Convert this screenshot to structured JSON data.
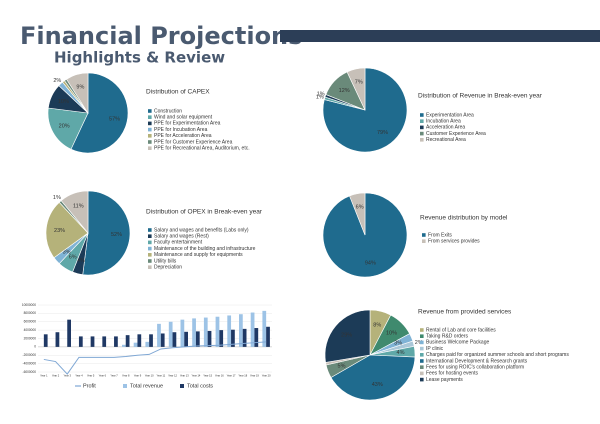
{
  "header": {
    "title": "Financial Projections",
    "subtitle": "Highlights & Review"
  },
  "chart_data": [
    {
      "type": "pie",
      "title": "Distribution of CAPEX",
      "categories": [
        "Construction",
        "Wind and solar equipment",
        "PPE for Experimentation Area",
        "PPE for Incubation Area",
        "PPE for Acceleration Area",
        "PPE for Customer Experience Area",
        "PPE for Recreational Area, Auditorium, etc."
      ],
      "values": [
        57,
        20,
        10,
        2,
        1,
        1,
        9
      ],
      "value_labels": [
        "57%",
        "20%",
        "10%",
        "2%",
        null,
        null,
        "9%"
      ],
      "colors": [
        "#1f6b8e",
        "#5fa8a8",
        "#1c3b57",
        "#7fb3d5",
        "#b5b27a",
        "#6a8a7a",
        "#c7c0b8"
      ]
    },
    {
      "type": "pie",
      "title": "Distribution of Revenue in Break-even year",
      "categories": [
        "Experimentation Area",
        "Incubation Area",
        "Acceleration Area",
        "Customer Experience Area",
        "Recreational Area"
      ],
      "values": [
        79,
        1,
        1,
        12,
        7
      ],
      "value_labels": [
        "79%",
        "1%",
        "1%",
        "12%",
        "7%"
      ],
      "colors": [
        "#1f6b8e",
        "#5fa8a8",
        "#1c3b57",
        "#6a8a7a",
        "#c7c0b8"
      ]
    },
    {
      "type": "pie",
      "title": "Distribution of OPEX in Break-even year",
      "categories": [
        "Salary and wages and benefits (Labs only)",
        "Salary and wages (Rest)",
        "Faculty entertainment",
        "Maintenance of the building and infrastructure",
        "Maintenance and supply for equipments",
        "Utility bills",
        "Depreciation"
      ],
      "values": [
        52,
        4,
        6,
        3,
        23,
        1,
        11
      ],
      "value_labels": [
        "52%",
        "4%",
        "6%",
        "3%",
        "23%",
        "1%",
        "11%"
      ],
      "colors": [
        "#1f6b8e",
        "#1c3b57",
        "#5fa8a8",
        "#7fb3d5",
        "#b5b27a",
        "#6a8a7a",
        "#c7c0b8"
      ]
    },
    {
      "type": "pie",
      "title": "Revenue distribution by model",
      "categories": [
        "From Exits",
        "From services provides"
      ],
      "values": [
        94,
        6
      ],
      "value_labels": [
        "94%",
        "6%"
      ],
      "colors": [
        "#1f6b8e",
        "#c7c0b8"
      ]
    },
    {
      "type": "pie",
      "title": "Revenue from provided services",
      "categories": [
        "Rental of Lab and core facilities",
        "Taking R&D orders",
        "Business Welcome Package",
        "IP clinic",
        "Charges paid for organized summer schools and short programs",
        "International Development & Research grants",
        "Fees for using ROIC's collaboration platform",
        "Fees for hosting events",
        "Lease payments"
      ],
      "values": [
        8,
        10,
        3,
        2,
        4,
        43,
        5,
        1,
        29
      ],
      "value_labels": [
        "8%",
        "10%",
        "3%",
        "2%",
        "4%",
        "43%",
        "5%",
        null,
        "29%"
      ],
      "colors": [
        "#b5b27a",
        "#3f8a6e",
        "#7fb3d5",
        "#a9c7d8",
        "#5fa8a8",
        "#1f6b8e",
        "#6a8a7a",
        "#c7c0b8",
        "#1c3b57"
      ]
    },
    {
      "type": "bar",
      "categories": [
        "Year 1",
        "Year 2",
        "Year 3",
        "Year 4",
        "Year 5",
        "Year 6",
        "Year 7",
        "Year 8",
        "Year 9",
        "Year 10",
        "Year 11",
        "Year 12",
        "Year 13",
        "Year 14",
        "Year 15",
        "Year 16",
        "Year 17",
        "Year 18",
        "Year 19",
        "Year 20"
      ],
      "series": [
        {
          "name": "Profit",
          "type": "line",
          "color": "#7fa7d4",
          "values": [
            -3000000,
            -3500000,
            -6500000,
            -2500000,
            -2500000,
            -2500000,
            -2500000,
            -2300000,
            -2000000,
            -1800000,
            -500000,
            -200000,
            0,
            200000,
            300000,
            400000,
            600000,
            800000,
            1000000,
            1200000
          ]
        },
        {
          "name": "Total revenue",
          "type": "bar",
          "color": "#9dc3e6",
          "values": [
            0,
            0,
            0,
            0,
            0,
            0,
            0,
            500000,
            1000000,
            1200000,
            5500000,
            6000000,
            6500000,
            6800000,
            7000000,
            7200000,
            7500000,
            7800000,
            8200000,
            8600000
          ]
        },
        {
          "name": "Total costs",
          "type": "bar",
          "color": "#1f3864",
          "values": [
            3000000,
            3500000,
            6500000,
            2500000,
            2500000,
            2500000,
            2500000,
            2800000,
            3000000,
            3000000,
            3200000,
            3500000,
            3600000,
            3700000,
            3800000,
            4000000,
            4100000,
            4300000,
            4500000,
            4800000
          ]
        }
      ],
      "ylim": [
        -6000000,
        10000000
      ],
      "yticks": [
        -6000000,
        -4000000,
        -2000000,
        0,
        2000000,
        4000000,
        6000000,
        8000000,
        10000000
      ],
      "grid": true
    }
  ]
}
